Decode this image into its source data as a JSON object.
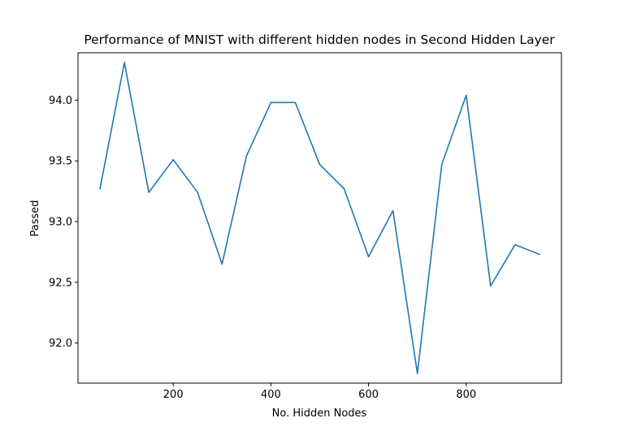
{
  "chart_data": {
    "type": "line",
    "title": "Performance of MNIST with different hidden nodes in Second Hidden Layer",
    "xlabel": "No. Hidden Nodes",
    "ylabel": "Passed",
    "xlim": [
      5,
      995
    ],
    "ylim": [
      91.67,
      94.39
    ],
    "xticks": [
      200,
      400,
      600,
      800
    ],
    "yticks": [
      92.0,
      92.5,
      93.0,
      93.5,
      94.0
    ],
    "xtick_labels": [
      "200",
      "400",
      "600",
      "800"
    ],
    "ytick_labels": [
      "92.0",
      "92.5",
      "93.0",
      "93.5",
      "94.0"
    ],
    "grid": false,
    "series": [
      {
        "color": "#1f77b4",
        "x": [
          50,
          100,
          150,
          200,
          250,
          300,
          350,
          400,
          450,
          500,
          550,
          600,
          650,
          700,
          750,
          800,
          850,
          900,
          950
        ],
        "y": [
          93.27,
          94.31,
          93.24,
          93.51,
          93.24,
          92.65,
          93.54,
          93.98,
          93.98,
          93.47,
          93.27,
          92.71,
          93.09,
          91.75,
          93.47,
          94.04,
          92.47,
          92.81,
          92.73
        ]
      }
    ]
  }
}
